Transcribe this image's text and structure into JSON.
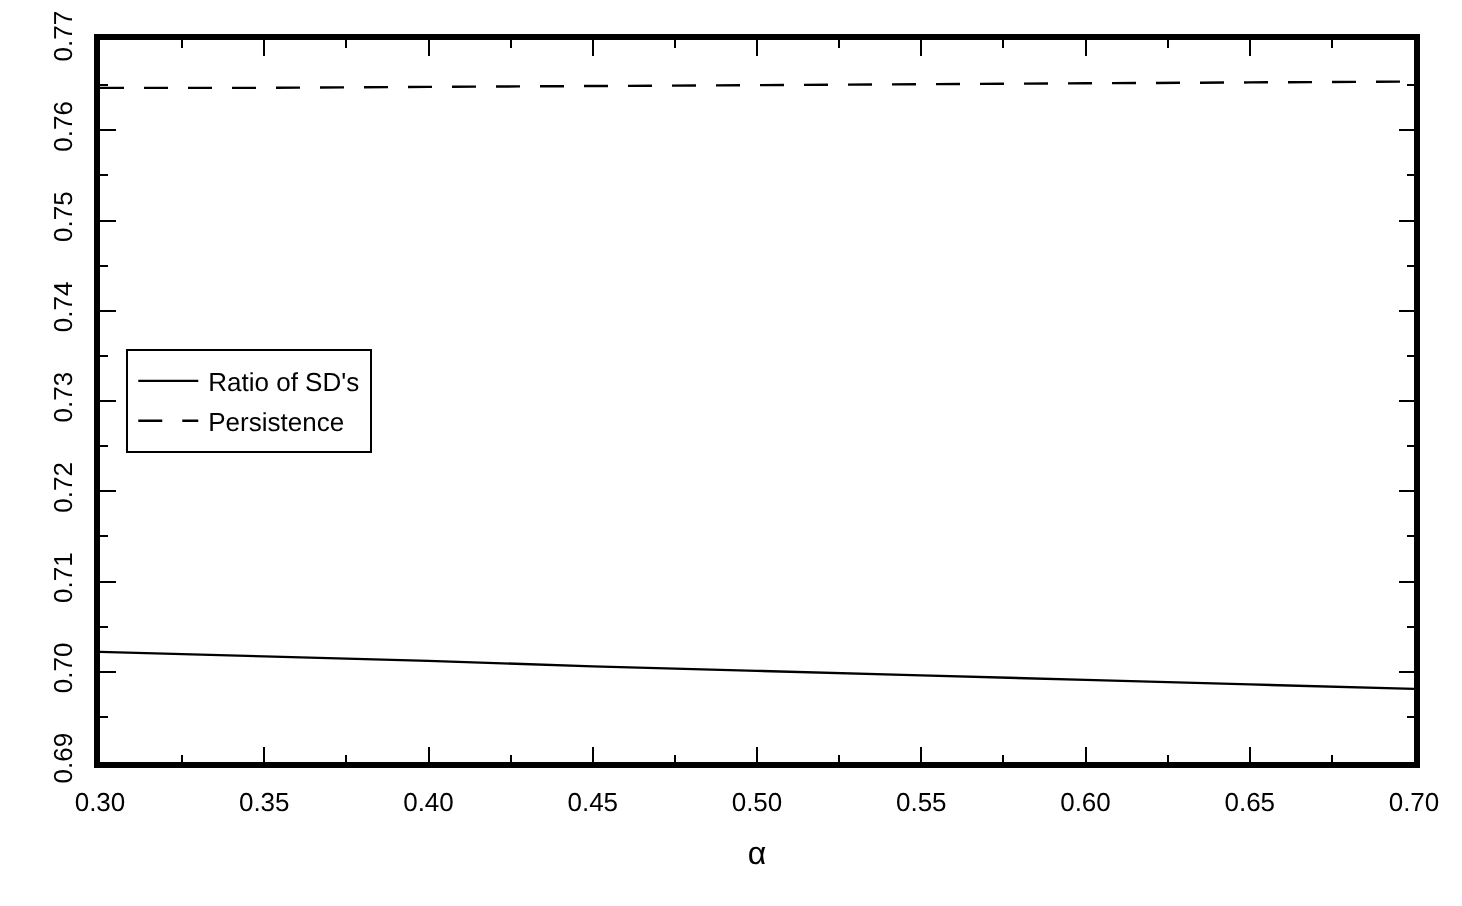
{
  "chart_data": {
    "type": "line",
    "xlabel": "α",
    "x": [
      0.3,
      0.35,
      0.4,
      0.45,
      0.5,
      0.55,
      0.6,
      0.65,
      0.7
    ],
    "series": [
      {
        "name": "Ratio of SD's",
        "color": "#000000",
        "line_style": "solid",
        "values": [
          0.7022,
          0.7017,
          0.7012,
          0.7006,
          0.7001,
          0.6996,
          0.6991,
          0.6986,
          0.6981
        ]
      },
      {
        "name": "Persistence",
        "color": "#000000",
        "line_style": "dashed",
        "values": [
          0.7647,
          0.7647,
          0.7648,
          0.7649,
          0.765,
          0.7651,
          0.7652,
          0.7653,
          0.7654
        ]
      }
    ],
    "xlim": [
      0.3,
      0.7
    ],
    "xticks": [
      {
        "value": 0.3,
        "label": "0.30"
      },
      0.35,
      {
        "value": 0.4,
        "label": "0.40"
      },
      0.45,
      {
        "value": 0.5,
        "label": "0.50"
      },
      0.55,
      {
        "value": 0.6,
        "label": "0.60"
      },
      0.65,
      {
        "value": 0.7,
        "label": "0.70"
      }
    ],
    "ylim": [
      0.69,
      0.77
    ],
    "yticks": [
      0.69,
      {
        "value": 0.7,
        "label": "0.70"
      },
      0.71,
      0.72,
      0.73,
      0.74,
      0.75,
      0.76,
      0.77
    ],
    "grid": false,
    "legend": "left",
    "marker": "none"
  }
}
